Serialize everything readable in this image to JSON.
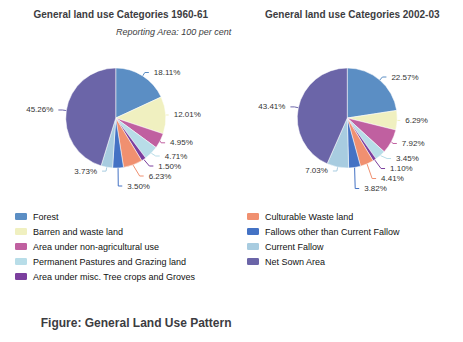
{
  "title": "Figure: General Land Use Pattern",
  "subtitle": "Reporting Area: 100 per cent",
  "legend": "bottom",
  "chart_data": [
    {
      "type": "pie",
      "title": "General land use Categories 1960-61",
      "categories": [
        "Forest",
        "Barren and waste land",
        "Area under non-agricultural use",
        "Permanent Pastures and Grazing land",
        "Area under misc. Tree crops and Groves",
        "Culturable Waste land",
        "Fallows other than Current Fallow",
        "Current Fallow",
        "Net Sown Area"
      ],
      "values": [
        18.11,
        12.01,
        4.95,
        4.71,
        1.5,
        6.23,
        3.5,
        3.73,
        45.26
      ],
      "value_labels": [
        "18.11%",
        "12.01%",
        "4.95%",
        "4.71%",
        "1.50%",
        "6.23%",
        "3.50%",
        "3.73%",
        "45.26%"
      ],
      "colors": [
        "#5b8ec4",
        "#f0f0c0",
        "#c060a0",
        "#b8dde8",
        "#7b3f9e",
        "#f09070",
        "#4472c4",
        "#a8cce0",
        "#6b65a8"
      ],
      "data_labels": true
    },
    {
      "type": "pie",
      "title": "General land use Categories 2002-03",
      "categories": [
        "Forest",
        "Barren and waste land",
        "Area under non-agricultural use",
        "Permanent Pastures and Grazing land",
        "Area under misc. Tree crops and Groves",
        "Culturable Waste land",
        "Fallows other than Current Fallow",
        "Current Fallow",
        "Net Sown Area"
      ],
      "values": [
        22.57,
        6.29,
        7.92,
        3.45,
        1.1,
        4.41,
        3.82,
        7.03,
        43.41
      ],
      "value_labels": [
        "22.57%",
        "6.29%",
        "7.92%",
        "3.45%",
        "1.10%",
        "4.41%",
        "3.82%",
        "7.03%",
        "43.41%"
      ],
      "colors": [
        "#5b8ec4",
        "#f0f0c0",
        "#c060a0",
        "#b8dde8",
        "#7b3f9e",
        "#f09070",
        "#4472c4",
        "#a8cce0",
        "#6b65a8"
      ],
      "data_labels": true
    }
  ]
}
